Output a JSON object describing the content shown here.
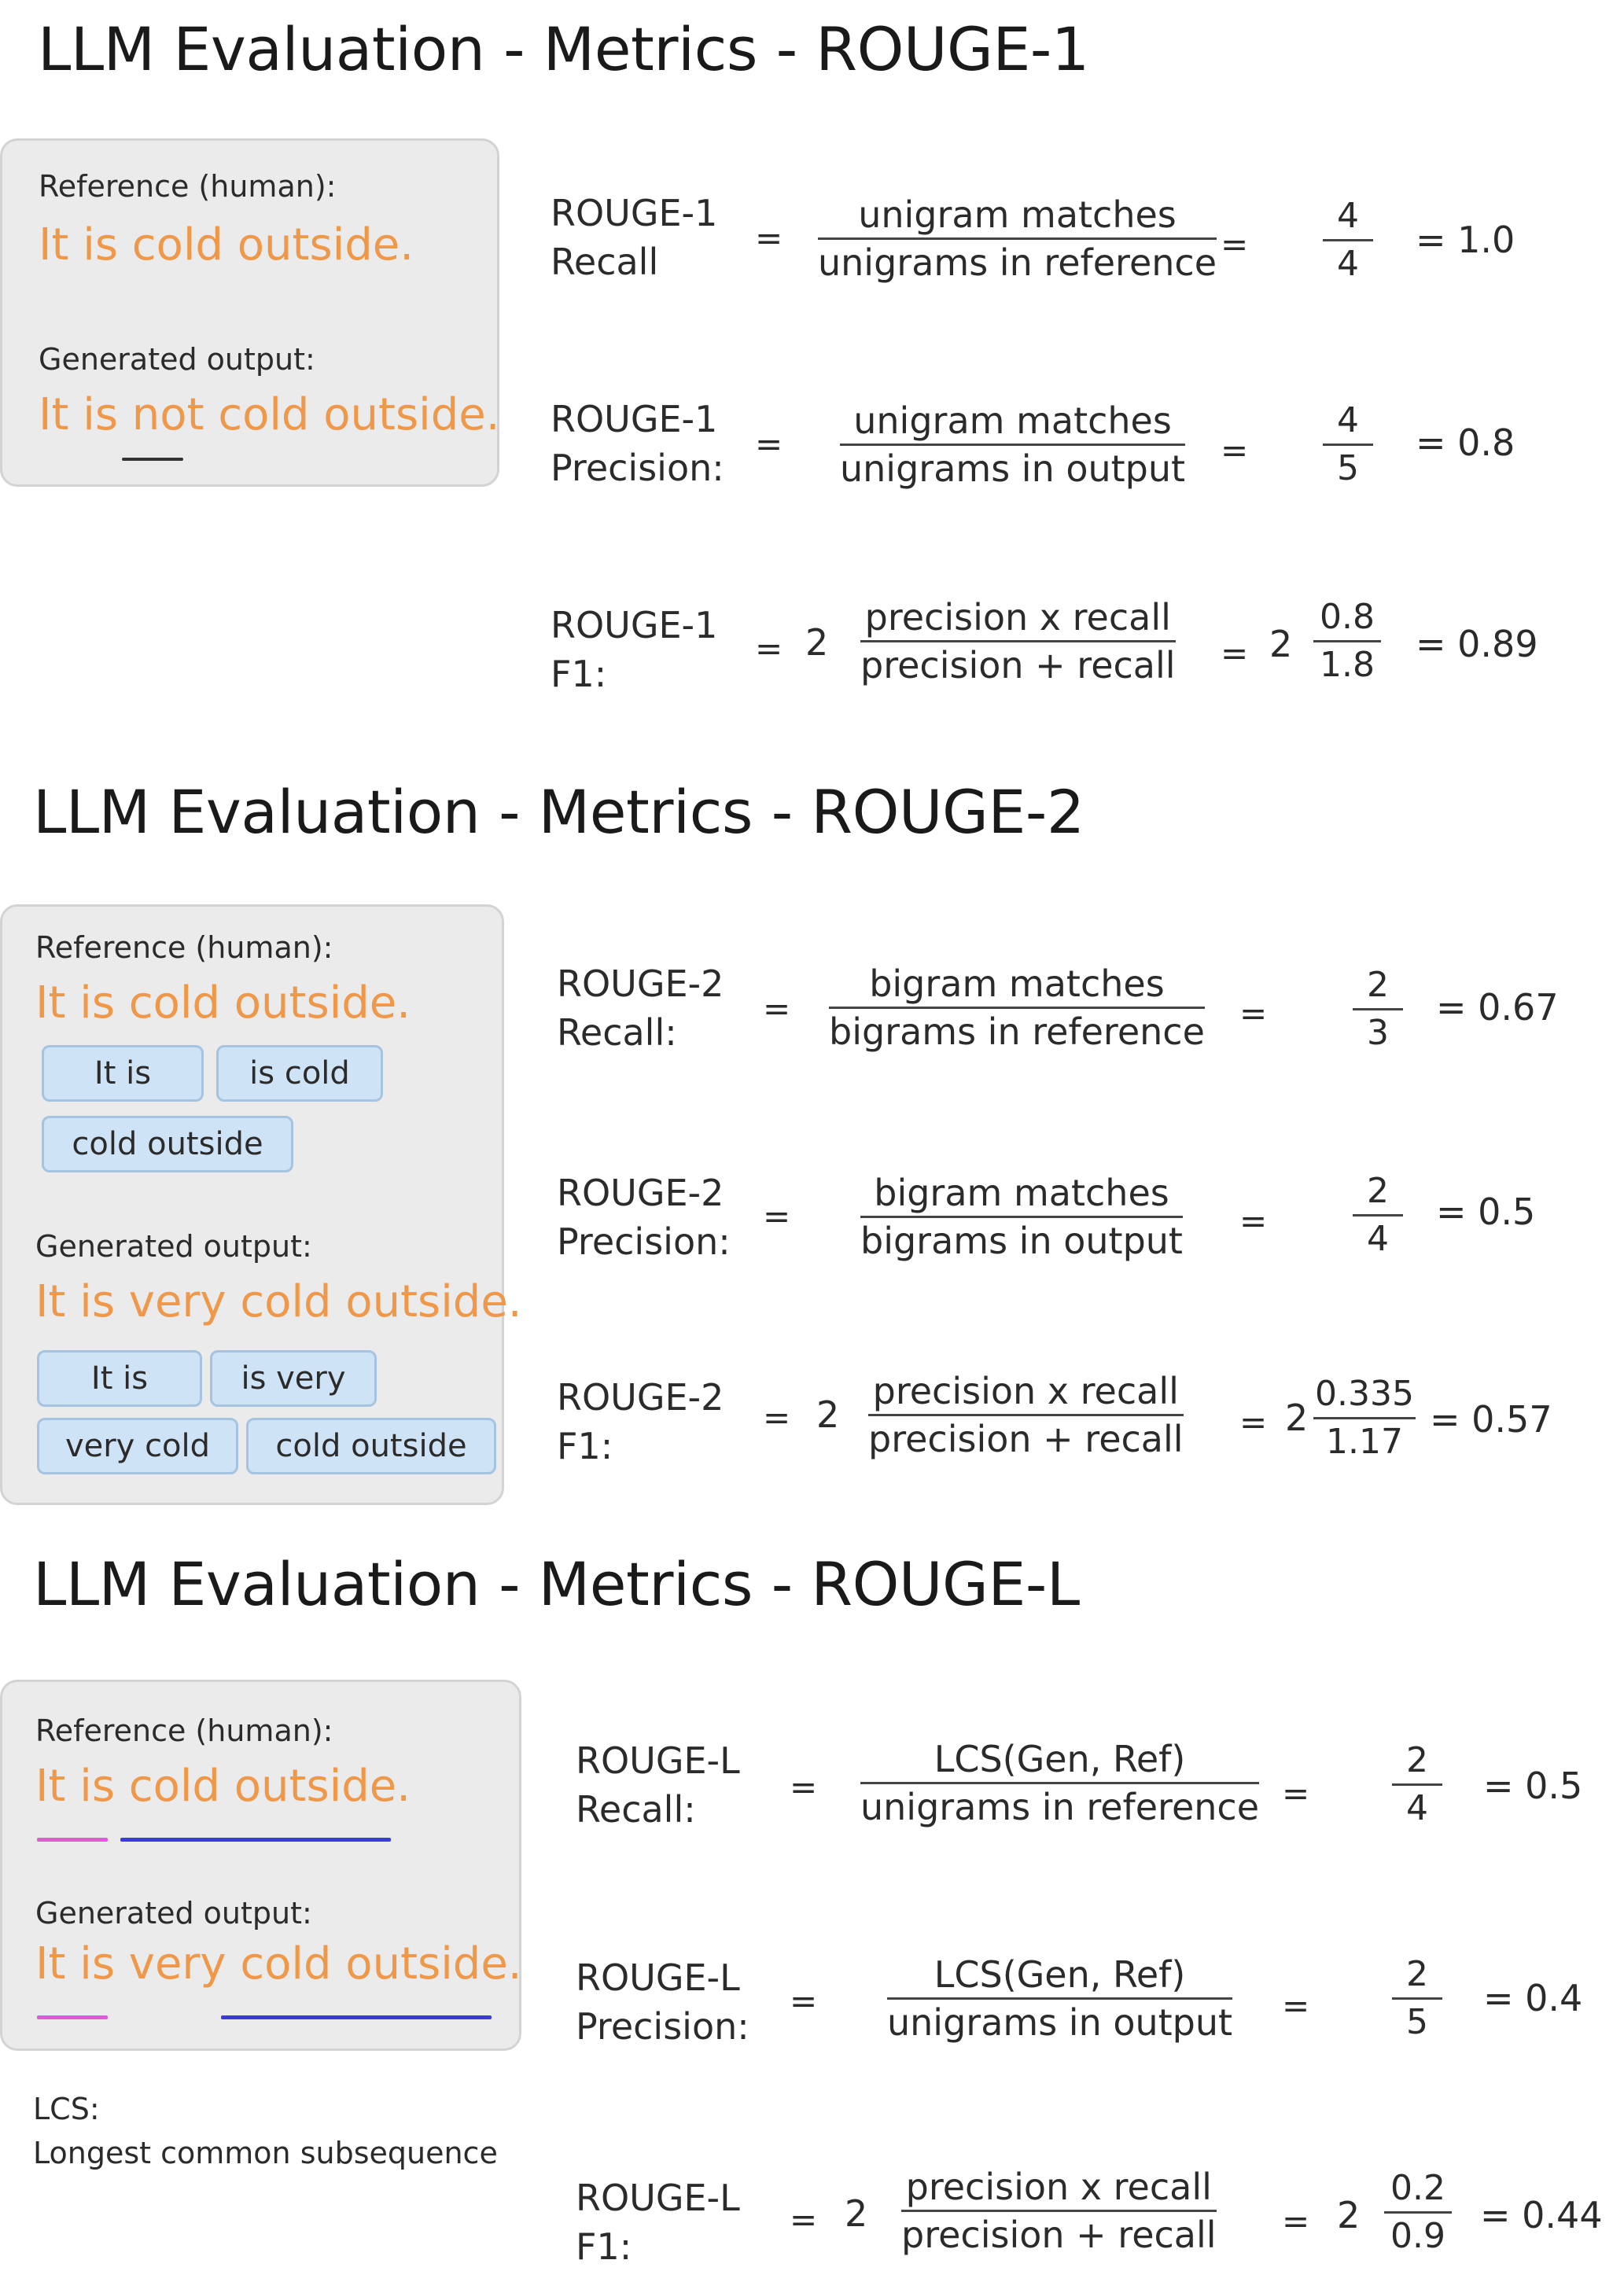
{
  "sections": [
    {
      "title": "LLM Evaluation - Metrics - ROUGE-1",
      "panel": {
        "reference_label": "Reference (human):",
        "reference_text": "It is cold outside.",
        "generated_label": "Generated output:",
        "generated_text": "It is not cold outside."
      },
      "rows": [
        {
          "line1": "ROUGE-1",
          "line2": "Recall",
          "numerator": "unigram matches",
          "denominator": "unigrams in reference",
          "num": "4",
          "den": "4",
          "result": "= 1.0"
        },
        {
          "line1": "ROUGE-1",
          "line2": "Precision:",
          "numerator": "unigram matches",
          "denominator": "unigrams in output",
          "num": "4",
          "den": "5",
          "result": "= 0.8"
        },
        {
          "line1": "ROUGE-1",
          "line2": "F1:",
          "factor": "2",
          "numerator": "precision x recall",
          "denominator": "precision + recall",
          "factor2": "2",
          "num": "0.8",
          "den": "1.8",
          "result": "= 0.89"
        }
      ]
    },
    {
      "title": "LLM Evaluation - Metrics - ROUGE-2",
      "panel": {
        "reference_label": "Reference (human):",
        "reference_text": "It is cold outside.",
        "reference_bigrams": [
          "It is",
          "is cold",
          "cold outside"
        ],
        "generated_label": "Generated output:",
        "generated_text": "It is very cold outside.",
        "generated_bigrams": [
          "It is",
          "is very",
          "very cold",
          "cold outside"
        ]
      },
      "rows": [
        {
          "line1": "ROUGE-2",
          "line2": "Recall:",
          "numerator": "bigram matches",
          "denominator": "bigrams in reference",
          "num": "2",
          "den": "3",
          "result": "= 0.67"
        },
        {
          "line1": "ROUGE-2",
          "line2": "Precision:",
          "numerator": "bigram matches",
          "denominator": "bigrams in output",
          "num": "2",
          "den": "4",
          "result": "= 0.5"
        },
        {
          "line1": "ROUGE-2",
          "line2": "F1:",
          "factor": "2",
          "numerator": "precision x recall",
          "denominator": "precision + recall",
          "factor2": "2",
          "num": "0.335",
          "den": "1.17",
          "result": "= 0.57"
        }
      ]
    },
    {
      "title": "LLM Evaluation - Metrics - ROUGE-L",
      "panel": {
        "reference_label": "Reference (human):",
        "reference_text": "It is cold outside.",
        "generated_label": "Generated output:",
        "generated_text": "It is very cold outside.",
        "lcs_label": "LCS:",
        "lcs_definition": "Longest common subsequence"
      },
      "rows": [
        {
          "line1": "ROUGE-L",
          "line2": "Recall:",
          "numerator": "LCS(Gen, Ref)",
          "denominator": "unigrams in reference",
          "num": "2",
          "den": "4",
          "result": "= 0.5"
        },
        {
          "line1": "ROUGE-L",
          "line2": "Precision:",
          "numerator": "LCS(Gen, Ref)",
          "denominator": "unigrams in output",
          "num": "2",
          "den": "5",
          "result": "= 0.4"
        },
        {
          "line1": "ROUGE-L",
          "line2": "F1:",
          "factor": "2",
          "numerator": "precision x recall",
          "denominator": "precision + recall",
          "factor2": "2",
          "num": "0.2",
          "den": "0.9",
          "result": "= 0.44"
        }
      ]
    }
  ],
  "equals_sign": "=",
  "colors": {
    "highlight_text": "#f0984a",
    "panel_background": "#ebebeb",
    "chip_background": "#cfe3f6",
    "lcs_underline_short": "#e05ad8",
    "lcs_underline_long": "#3b3bd8",
    "removed_word_underline": "#333333"
  }
}
